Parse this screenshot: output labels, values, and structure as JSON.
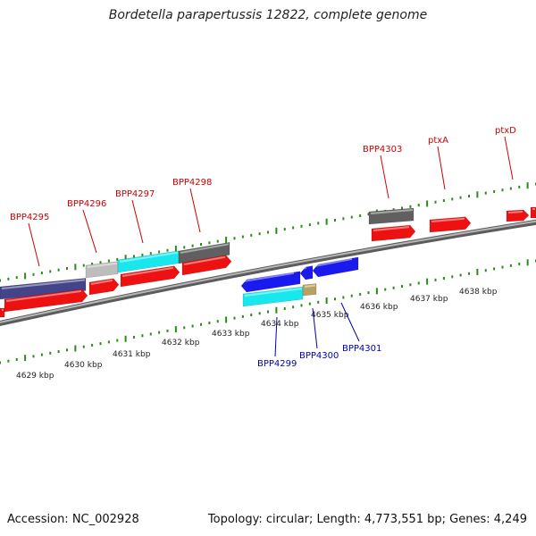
{
  "title": "Bordetella parapertussis 12822, complete genome",
  "footer": {
    "accession": "Accession: NC_002928",
    "topology": "Topology: circular; Length: 4,773,551 bp; Genes: 4,249"
  },
  "colors": {
    "backbone": "#8a8a8a",
    "tick": "#2a8a1a",
    "red_gene": "#ee1111",
    "blue_gene": "#1a1aee",
    "cyan_gene": "#18e8ee",
    "slate_gene": "#44448a",
    "gray_gene": "#606060",
    "lightgray_gene": "#bdbdbd",
    "tan_gene": "#b8a060",
    "label_top": "#cc0000",
    "label_bottom": "#0000aa"
  },
  "ruler": {
    "labels": [
      "4629 kbp",
      "4630 kbp",
      "4631 kbp",
      "4632 kbp",
      "4633 kbp",
      "4634 kbp",
      "4635 kbp",
      "4636 kbp",
      "4637 kbp",
      "4638 kbp"
    ]
  },
  "gene_labels_top": [
    "BPP4295",
    "BPP4296",
    "BPP4297",
    "BPP4298",
    "BPP4303",
    "ptxA",
    "ptxD"
  ],
  "gene_labels_bottom": [
    "BPP4299",
    "BPP4300",
    "BPP4301"
  ]
}
